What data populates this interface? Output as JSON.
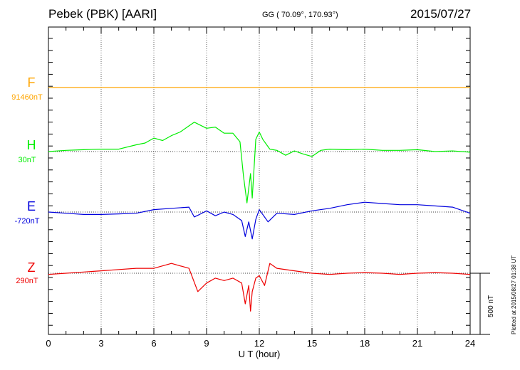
{
  "header": {
    "station": "Pebek (PBK)  [AARI]",
    "coords": "GG ( 70.09°, 170.93°)",
    "date": "2015/07/27"
  },
  "stamp": "Plotted at 2015/08/27 01:38 UT",
  "scale_label": "500 nT",
  "chart_data": {
    "type": "line",
    "title": "Pebek (PBK)  [AARI]",
    "xlabel": "U T (hour)",
    "xlim": [
      0,
      24
    ],
    "xticks": [
      "0",
      "3",
      "6",
      "9",
      "12",
      "15",
      "18",
      "21",
      "24"
    ],
    "grid": true,
    "scale_bar_nT": 500,
    "series": [
      {
        "name": "F",
        "baseline": "91460nT",
        "color": "#ffa500",
        "x": [
          0,
          6,
          12,
          18,
          24
        ],
        "deviation_nT": [
          0,
          0,
          0,
          0,
          0
        ]
      },
      {
        "name": "H",
        "baseline": "30nT",
        "color": "#00ee00",
        "x": [
          0,
          1,
          2,
          3,
          4,
          5,
          5.5,
          6,
          6.5,
          7,
          7.5,
          8,
          8.3,
          9,
          9.5,
          10,
          10.5,
          10.9,
          11.1,
          11.3,
          11.5,
          11.6,
          11.8,
          12,
          12.2,
          12.6,
          13,
          13.5,
          14,
          14.5,
          15,
          15.5,
          16,
          17,
          18,
          19,
          20,
          21,
          22,
          23,
          24
        ],
        "deviation_nT": [
          0,
          10,
          15,
          20,
          20,
          55,
          70,
          110,
          90,
          130,
          160,
          210,
          240,
          190,
          200,
          150,
          150,
          80,
          -200,
          -420,
          -180,
          -380,
          100,
          160,
          100,
          20,
          10,
          -30,
          5,
          -20,
          -40,
          10,
          20,
          15,
          20,
          10,
          10,
          15,
          0,
          5,
          -5
        ]
      },
      {
        "name": "E",
        "baseline": "-720nT",
        "color": "#0000dd",
        "x": [
          0,
          1,
          2,
          3,
          4,
          5,
          6,
          7,
          8,
          8.3,
          8.6,
          9,
          9.5,
          10,
          10.5,
          11,
          11.2,
          11.4,
          11.6,
          11.8,
          12,
          12.5,
          13,
          14,
          15,
          16,
          17,
          18,
          19,
          20,
          21,
          22,
          23,
          24
        ],
        "deviation_nT": [
          0,
          -10,
          -20,
          -20,
          -15,
          -10,
          20,
          30,
          40,
          -40,
          -20,
          10,
          -30,
          0,
          -20,
          -70,
          -200,
          -80,
          -220,
          -60,
          20,
          -80,
          -10,
          -20,
          10,
          30,
          60,
          80,
          70,
          60,
          60,
          50,
          40,
          -10
        ]
      },
      {
        "name": "Z",
        "baseline": "290nT",
        "color": "#ee0000",
        "x": [
          0,
          1,
          2,
          3,
          4,
          5,
          6,
          7,
          8,
          8.5,
          9,
          9.5,
          10,
          10.5,
          11,
          11.2,
          11.4,
          11.5,
          11.6,
          11.8,
          12,
          12.3,
          12.6,
          13,
          14,
          15,
          16,
          17,
          18,
          19,
          20,
          21,
          22,
          23,
          24
        ],
        "deviation_nT": [
          -10,
          0,
          10,
          20,
          30,
          40,
          40,
          80,
          40,
          -150,
          -80,
          -40,
          -60,
          -40,
          -80,
          -250,
          -100,
          -310,
          -150,
          -40,
          -20,
          -100,
          80,
          40,
          20,
          0,
          -10,
          0,
          5,
          0,
          -10,
          0,
          5,
          0,
          -10
        ]
      }
    ]
  }
}
